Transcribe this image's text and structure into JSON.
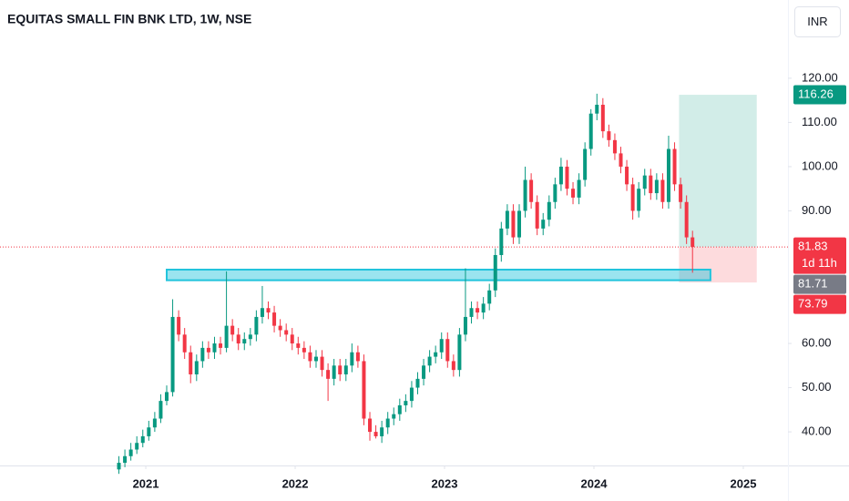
{
  "chart_data": {
    "type": "candlestick",
    "title": "EQUITAS SMALL FIN BNK LTD, 1W, NSE",
    "currency": "INR",
    "up_color": "#089981",
    "down_color": "#f23645",
    "x": [
      2020.82,
      2020.86,
      2020.9,
      2020.94,
      2020.98,
      2021.02,
      2021.06,
      2021.1,
      2021.14,
      2021.18,
      2021.22,
      2021.26,
      2021.3,
      2021.34,
      2021.38,
      2021.42,
      2021.46,
      2021.5,
      2021.54,
      2021.58,
      2021.62,
      2021.66,
      2021.7,
      2021.74,
      2021.78,
      2021.82,
      2021.86,
      2021.9,
      2021.94,
      2021.98,
      2022.02,
      2022.06,
      2022.1,
      2022.14,
      2022.18,
      2022.22,
      2022.26,
      2022.3,
      2022.34,
      2022.38,
      2022.42,
      2022.46,
      2022.5,
      2022.54,
      2022.58,
      2022.62,
      2022.66,
      2022.7,
      2022.74,
      2022.78,
      2022.82,
      2022.86,
      2022.9,
      2022.94,
      2022.98,
      2023.02,
      2023.06,
      2023.1,
      2023.14,
      2023.18,
      2023.22,
      2023.26,
      2023.3,
      2023.34,
      2023.38,
      2023.42,
      2023.46,
      2023.5,
      2023.54,
      2023.58,
      2023.62,
      2023.66,
      2023.7,
      2023.74,
      2023.78,
      2023.82,
      2023.86,
      2023.9,
      2023.94,
      2023.98,
      2024.02,
      2024.06,
      2024.1,
      2024.14,
      2024.18,
      2024.22,
      2024.26,
      2024.3,
      2024.34,
      2024.38,
      2024.42,
      2024.46,
      2024.5,
      2024.54,
      2024.58,
      2024.62,
      2024.66
    ],
    "open": [
      31.5,
      33,
      34.5,
      36,
      37.5,
      39,
      41,
      43,
      47,
      49,
      66,
      62,
      58,
      53,
      56,
      59,
      58,
      60,
      59,
      64,
      62,
      60,
      61,
      62,
      66,
      68,
      67,
      64,
      63,
      62,
      60,
      59,
      58,
      56,
      57,
      54,
      52,
      55,
      53,
      55,
      58,
      56,
      43,
      40,
      39,
      41,
      43,
      44,
      46,
      47,
      50,
      52,
      55,
      57,
      58,
      61,
      56,
      54,
      62,
      66,
      68,
      67,
      69,
      72,
      80,
      86,
      90,
      84,
      90,
      97,
      92,
      86,
      88,
      92,
      96,
      100,
      95,
      93,
      97,
      104,
      112,
      114,
      108,
      106,
      103,
      100,
      96,
      90,
      95,
      98,
      94,
      97,
      92,
      104,
      96,
      92,
      84
    ],
    "high": [
      34.5,
      36,
      37.5,
      39,
      40.5,
      42.5,
      44.5,
      48.5,
      50.5,
      70,
      67.5,
      63.5,
      59.5,
      57.5,
      60.5,
      60.5,
      61.5,
      61.5,
      76.3,
      65.5,
      63.5,
      62.5,
      63.5,
      67.5,
      73,
      69.5,
      68.5,
      65.5,
      64.5,
      63.5,
      61.5,
      60.5,
      59.5,
      58.5,
      58.5,
      55.5,
      56.5,
      56.5,
      56.5,
      60,
      59.5,
      57.5,
      44.5,
      41.5,
      42.5,
      44.5,
      45.5,
      47.5,
      48.5,
      51.5,
      53.5,
      56.5,
      58.5,
      59.5,
      62.5,
      62.5,
      57.5,
      63.5,
      77,
      69.5,
      69.5,
      70.5,
      73.5,
      81.5,
      87.5,
      91.5,
      91.5,
      91.5,
      100,
      98.5,
      93.5,
      89.5,
      93.5,
      97.5,
      102,
      101.5,
      96.5,
      98.5,
      105.5,
      113,
      116.5,
      115.5,
      109.5,
      107.5,
      104.5,
      101.5,
      97.5,
      96.5,
      99.5,
      99.5,
      98.5,
      98.5,
      107,
      105.5,
      97.5,
      93.5,
      85.5
    ],
    "low": [
      30.5,
      32,
      33.5,
      35,
      36.5,
      38,
      40,
      42,
      46,
      48,
      60.5,
      56.5,
      51,
      51.5,
      54.5,
      56.5,
      56.5,
      57.5,
      58,
      60.5,
      58.5,
      58.5,
      59.5,
      60.5,
      64.5,
      65.5,
      62.5,
      61.5,
      60.5,
      58.5,
      57.5,
      56.5,
      54.5,
      54.5,
      52.5,
      47,
      50.5,
      51.5,
      51.5,
      53.5,
      54.5,
      41.5,
      38,
      38.5,
      37.5,
      39.5,
      41.5,
      42.5,
      44.5,
      45.5,
      48.5,
      50.5,
      53.5,
      55.5,
      56.5,
      54.5,
      52.5,
      52.5,
      60.5,
      64.5,
      65.5,
      65.5,
      67.5,
      70.5,
      78.5,
      84.5,
      82.5,
      82.5,
      88.5,
      90.5,
      84.5,
      84.5,
      86.5,
      90.5,
      94.5,
      93.5,
      91.5,
      91.5,
      95.5,
      102.5,
      110.5,
      106.5,
      104.5,
      101.5,
      98.5,
      94.5,
      88,
      88.5,
      93.5,
      92.5,
      92.5,
      90.5,
      90.5,
      94.5,
      90.5,
      82.5,
      76
    ],
    "close": [
      33,
      34.5,
      36,
      37.5,
      39,
      41,
      43,
      47,
      49,
      66,
      62,
      58,
      53,
      56,
      59,
      58,
      60,
      59,
      64,
      62,
      60,
      61,
      62,
      66,
      68,
      67,
      64,
      63,
      62,
      60,
      59,
      58,
      56,
      57,
      54,
      52,
      55,
      53,
      55,
      58,
      56,
      43,
      40,
      39,
      41,
      43,
      44,
      46,
      47,
      50,
      52,
      55,
      57,
      58,
      61,
      56,
      54,
      62,
      66,
      68,
      67,
      69,
      72,
      80,
      86,
      90,
      84,
      90,
      97,
      92,
      86,
      88,
      92,
      96,
      100,
      95,
      93,
      97,
      104,
      112,
      114,
      108,
      106,
      103,
      100,
      96,
      90,
      95,
      98,
      94,
      97,
      92,
      104,
      96,
      92,
      84,
      81.83
    ],
    "xlim": [
      2020.024,
      2025.299
    ],
    "xticks": [
      2021,
      2022,
      2023,
      2024,
      2025
    ],
    "ylim": [
      32.6,
      137.7
    ],
    "yticks": [
      {
        "value": 40,
        "label": "40.00"
      },
      {
        "value": 50,
        "label": "50.00"
      },
      {
        "value": 60,
        "label": "60.00"
      },
      {
        "value": 90,
        "label": "90.00"
      },
      {
        "value": 100,
        "label": "100.00"
      },
      {
        "value": 110,
        "label": "110.00"
      },
      {
        "value": 120,
        "label": "120.00"
      }
    ],
    "current_price": 81.83,
    "zone": {
      "x0": 2021.14,
      "x1": 2024.78,
      "low": 74.3,
      "high": 76.7,
      "color": "#22c4dc"
    },
    "position": {
      "x0": 2024.57,
      "x1": 2025.09,
      "entry": 81.83,
      "target": 116.26,
      "stop": 73.79
    },
    "price_labels": [
      {
        "value": 116.26,
        "color": "#089981"
      },
      {
        "value": 81.83,
        "color": "#f23645",
        "sub": "1d 11h"
      },
      {
        "value": 81.71,
        "color": "#787b86"
      },
      {
        "value": 73.79,
        "color": "#f23645"
      }
    ]
  }
}
